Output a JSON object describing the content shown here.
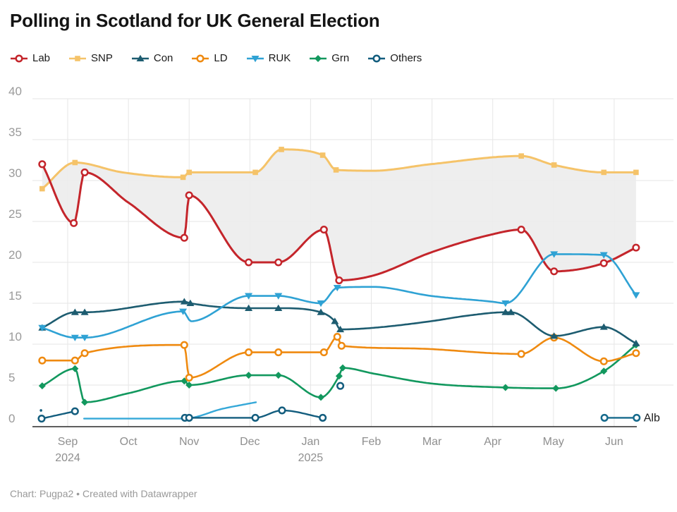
{
  "header": {
    "title": "Polling in Scotland for UK General Election"
  },
  "footer": {
    "credit": "Chart: Pugpa2 • Created with Datawrapper"
  },
  "chart_data": {
    "type": "line",
    "title": "Polling in Scotland for UK General Election",
    "x_axis": {
      "unit": "months",
      "tick_labels": [
        [
          "Sep",
          "2024"
        ],
        [
          "Oct"
        ],
        [
          "Nov"
        ],
        [
          "Dec"
        ],
        [
          "Jan",
          "2025"
        ],
        [
          "Feb"
        ],
        [
          "Mar"
        ],
        [
          "Apr"
        ],
        [
          "May"
        ],
        [
          "Jun"
        ]
      ]
    },
    "y_axis": {
      "min": 0,
      "max": 40,
      "step": 5
    },
    "grid": true,
    "band_between": [
      "SNP",
      "Lab"
    ],
    "band_color": "#ececec",
    "grid_color": "#e6e6e6",
    "axis_color": "#2a2a2a",
    "y_label_color": "#9a9a9a",
    "x_label_color": "#8f8f8f",
    "end_label": {
      "text": "Alb",
      "series": "Alb"
    },
    "series": [
      {
        "name": "Lab",
        "color": "#c4252b",
        "marker": "circle-open",
        "width": 3,
        "z": 8,
        "in_legend": true,
        "points": [
          [
            -0.42,
            32
          ],
          [
            0.1,
            24.8
          ],
          [
            0.28,
            31
          ],
          [
            1.0,
            27.3,
            0
          ],
          [
            1.92,
            23
          ],
          [
            2.0,
            28.2
          ],
          [
            2.98,
            20
          ],
          [
            3.47,
            20
          ],
          [
            4.22,
            24
          ],
          [
            4.47,
            17.8
          ],
          [
            5.04,
            18.4,
            0
          ],
          [
            5.98,
            21.2,
            0
          ],
          [
            6.98,
            23.4,
            0
          ],
          [
            7.47,
            24
          ],
          [
            8.01,
            18.9
          ],
          [
            8.83,
            19.9
          ],
          [
            9.36,
            21.8
          ]
        ]
      },
      {
        "name": "SNP",
        "color": "#f5c369",
        "marker": "square",
        "width": 3,
        "z": 7,
        "in_legend": true,
        "points": [
          [
            -0.42,
            29
          ],
          [
            0.12,
            32.2
          ],
          [
            0.9,
            31,
            0
          ],
          [
            1.9,
            30.4
          ],
          [
            2.0,
            31
          ],
          [
            3.09,
            31
          ],
          [
            3.52,
            33.8
          ],
          [
            4.2,
            33.1
          ],
          [
            4.42,
            31.3
          ],
          [
            5.04,
            31.2,
            0
          ],
          [
            5.98,
            32,
            0
          ],
          [
            7.47,
            33
          ],
          [
            8.01,
            31.9
          ],
          [
            8.83,
            31
          ],
          [
            9.36,
            31
          ]
        ]
      },
      {
        "name": "Con",
        "color": "#1d5c70",
        "marker": "triangle-up",
        "width": 2.6,
        "z": 6,
        "in_legend": true,
        "points": [
          [
            -0.42,
            12
          ],
          [
            0.12,
            13.9
          ],
          [
            0.28,
            13.9
          ],
          [
            1.92,
            15.2
          ],
          [
            2.02,
            15
          ],
          [
            2.98,
            14.4
          ],
          [
            3.47,
            14.4
          ],
          [
            4.17,
            13.9
          ],
          [
            4.4,
            12.8
          ],
          [
            4.49,
            11.8
          ],
          [
            5.04,
            12,
            0
          ],
          [
            5.98,
            12.8,
            0
          ],
          [
            6.6,
            13.5,
            0
          ],
          [
            7.21,
            13.9
          ],
          [
            7.3,
            13.9
          ],
          [
            8.01,
            11
          ],
          [
            8.83,
            12.1
          ],
          [
            9.36,
            10.1
          ]
        ]
      },
      {
        "name": "LD",
        "color": "#ef8a10",
        "marker": "circle-open",
        "width": 2.6,
        "z": 5,
        "in_legend": true,
        "points": [
          [
            -0.42,
            8
          ],
          [
            0.12,
            8
          ],
          [
            0.28,
            8.9
          ],
          [
            1.92,
            9.9
          ],
          [
            2.0,
            5.9
          ],
          [
            2.98,
            9
          ],
          [
            3.47,
            9
          ],
          [
            4.22,
            9
          ],
          [
            4.44,
            10.9
          ],
          [
            4.51,
            9.8
          ],
          [
            5.98,
            9.4,
            0
          ],
          [
            6.98,
            8.9,
            0
          ],
          [
            7.47,
            8.8
          ],
          [
            8.01,
            10.8
          ],
          [
            8.83,
            7.9
          ],
          [
            9.36,
            8.9
          ]
        ]
      },
      {
        "name": "RUK",
        "color": "#2fa2d4",
        "marker": "triangle-down",
        "width": 2.6,
        "z": 9,
        "in_legend": true,
        "points": [
          [
            -0.42,
            12
          ],
          [
            0.12,
            10.8
          ],
          [
            0.28,
            10.8
          ],
          [
            1.9,
            14
          ],
          [
            2.03,
            12.8,
            0
          ],
          [
            2.98,
            15.9
          ],
          [
            3.47,
            15.9
          ],
          [
            4.17,
            15
          ],
          [
            4.44,
            16.9
          ],
          [
            5.04,
            17,
            0
          ],
          [
            5.98,
            15.9,
            0
          ],
          [
            6.98,
            15.2,
            0
          ],
          [
            7.21,
            15
          ],
          [
            8.01,
            21
          ],
          [
            8.83,
            20.9
          ],
          [
            9.36,
            16
          ]
        ]
      },
      {
        "name": "Grn",
        "color": "#12985e",
        "marker": "diamond",
        "width": 2.6,
        "z": 4,
        "in_legend": true,
        "points": [
          [
            -0.42,
            4.9
          ],
          [
            0.12,
            7
          ],
          [
            0.28,
            2.9
          ],
          [
            1.0,
            4.0,
            0
          ],
          [
            1.92,
            5.5
          ],
          [
            2.0,
            5.0
          ],
          [
            2.98,
            6.2
          ],
          [
            3.47,
            6.2
          ],
          [
            4.17,
            3.5
          ],
          [
            4.47,
            6.1
          ],
          [
            4.53,
            7.1
          ],
          [
            5.04,
            6.4,
            0
          ],
          [
            5.98,
            5.2,
            0
          ],
          [
            7.21,
            4.7
          ],
          [
            8.04,
            4.6
          ],
          [
            8.83,
            6.7
          ],
          [
            9.36,
            9.9
          ]
        ]
      },
      {
        "name": "Others",
        "color": "#135d7e",
        "marker": "circle-open",
        "width": 2.4,
        "z": 3,
        "in_legend": true,
        "points": [
          [
            -0.44,
            1.9,
            2
          ],
          null,
          [
            -0.43,
            0.9
          ],
          [
            0.12,
            1.8
          ],
          null,
          [
            1.93,
            1
          ],
          [
            2.0,
            1
          ],
          [
            3.09,
            1
          ],
          [
            3.53,
            1.9
          ],
          [
            4.2,
            1
          ],
          null,
          [
            4.49,
            4.9
          ]
        ]
      },
      {
        "name": "Alb (early)",
        "color": "#35a8d8",
        "marker": "none",
        "width": 2.4,
        "z": 1,
        "in_legend": false,
        "points": [
          [
            0.27,
            0.9,
            0
          ],
          [
            1.3,
            0.9,
            0
          ],
          [
            1.92,
            0.9,
            0
          ],
          [
            2.55,
            2.1,
            0
          ],
          [
            3.1,
            2.9,
            0
          ]
        ]
      },
      {
        "name": "Alb",
        "color": "#166a8c",
        "marker": "circle-open",
        "width": 2.4,
        "z": 2,
        "in_legend": false,
        "points": [
          [
            8.84,
            1
          ],
          [
            9.37,
            1
          ]
        ]
      }
    ]
  }
}
